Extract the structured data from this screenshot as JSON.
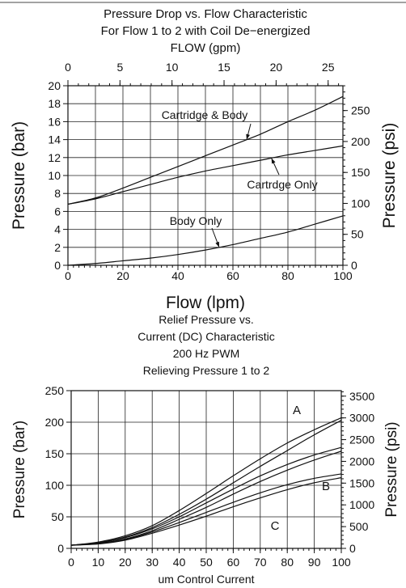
{
  "chart_data": [
    {
      "type": "line",
      "title": [
        "Pressure Drop vs. Flow Characteristic",
        "For Flow 1 to 2 with Coil De−energized",
        "FLOW (gpm)"
      ],
      "xlabel": "Flow (lpm)",
      "ylabel": "Pressure (bar)",
      "y2label": "Pressure (psi)",
      "xlim": [
        0,
        100
      ],
      "ylim": [
        0,
        20
      ],
      "x_ticks": [
        "0",
        "20",
        "40",
        "60",
        "80",
        "100"
      ],
      "y_ticks": [
        "0",
        "2",
        "4",
        "6",
        "8",
        "10",
        "12",
        "14",
        "16",
        "18",
        "20"
      ],
      "x2_ticks": [
        {
          "v": 0,
          "label": "0"
        },
        {
          "v": 5,
          "label": "5"
        },
        {
          "v": 10,
          "label": "10"
        },
        {
          "v": 15,
          "label": "15"
        },
        {
          "v": 20,
          "label": "20"
        },
        {
          "v": 25,
          "label": "25"
        }
      ],
      "y2_ticks": [
        {
          "v": 0,
          "label": "0"
        },
        {
          "v": 50,
          "label": "50"
        },
        {
          "v": 100,
          "label": "100"
        },
        {
          "v": 150,
          "label": "150"
        },
        {
          "v": 200,
          "label": "200"
        },
        {
          "v": 250,
          "label": "250"
        }
      ],
      "grid": true,
      "series": [
        {
          "name": "Cartridge & Body",
          "x": [
            0,
            10,
            20,
            30,
            40,
            50,
            60,
            70,
            80,
            90,
            100
          ],
          "y": [
            6.8,
            7.5,
            8.6,
            9.8,
            11.0,
            12.2,
            13.4,
            14.6,
            16.0,
            17.3,
            18.8
          ]
        },
        {
          "name": "Cartrdge Only",
          "x": [
            0,
            10,
            20,
            30,
            40,
            50,
            60,
            70,
            80,
            90,
            100
          ],
          "y": [
            6.8,
            7.4,
            8.2,
            9.0,
            9.8,
            10.5,
            11.1,
            11.7,
            12.3,
            12.8,
            13.3
          ]
        },
        {
          "name": "Body Only",
          "x": [
            0,
            10,
            20,
            30,
            40,
            50,
            60,
            70,
            80,
            90,
            100
          ],
          "y": [
            0,
            0.2,
            0.5,
            0.8,
            1.2,
            1.7,
            2.3,
            3.0,
            3.7,
            4.6,
            5.5
          ]
        }
      ],
      "annotations": [
        {
          "text": "Cartridge & Body",
          "series": 0,
          "at": 65
        },
        {
          "text": "Cartrdge Only",
          "series": 1,
          "at": 74
        },
        {
          "text": "Body Only",
          "series": 2,
          "at": 55
        }
      ]
    },
    {
      "type": "line",
      "title": [
        "Relief Pressure vs.",
        "Current (DC) Characteristic",
        "200 Hz PWM",
        "Relieving Pressure 1 to 2"
      ],
      "xlabel": "um Control Current",
      "ylabel": "Pressure (bar)",
      "y2label": "Pressure (psi)",
      "xlim": [
        0,
        100
      ],
      "ylim": [
        0,
        250
      ],
      "x_ticks": [
        "0",
        "10",
        "20",
        "30",
        "40",
        "50",
        "60",
        "70",
        "80",
        "90",
        "100"
      ],
      "y_ticks": [
        "0",
        "50",
        "100",
        "150",
        "200",
        "250"
      ],
      "y2_ticks": [
        {
          "v": 0,
          "label": "0"
        },
        {
          "v": 500,
          "label": "500"
        },
        {
          "v": 1000,
          "label": "1000"
        },
        {
          "v": 1500,
          "label": "1500"
        },
        {
          "v": 2000,
          "label": "2000"
        },
        {
          "v": 2500,
          "label": "2500"
        },
        {
          "v": 3000,
          "label": "3000"
        },
        {
          "v": 3500,
          "label": "3500"
        }
      ],
      "grid": true,
      "series": [
        {
          "name": "A",
          "x": [
            0,
            10,
            20,
            30,
            40,
            50,
            60,
            70,
            80,
            90,
            100
          ],
          "y": [
            5,
            10,
            20,
            36,
            60,
            87,
            115,
            142,
            167,
            188,
            207
          ]
        },
        {
          "name": "A",
          "x": [
            0,
            10,
            20,
            30,
            40,
            50,
            60,
            70,
            80,
            90,
            100
          ],
          "y": [
            5,
            9,
            18,
            33,
            54,
            78,
            104,
            130,
            155,
            180,
            203
          ]
        },
        {
          "name": "B",
          "x": [
            0,
            10,
            20,
            30,
            40,
            50,
            60,
            70,
            80,
            90,
            100
          ],
          "y": [
            5,
            9,
            17,
            31,
            50,
            72,
            94,
            115,
            133,
            148,
            160
          ]
        },
        {
          "name": "B",
          "x": [
            0,
            10,
            20,
            30,
            40,
            50,
            60,
            70,
            80,
            90,
            100
          ],
          "y": [
            5,
            8,
            15,
            28,
            46,
            65,
            86,
            106,
            124,
            140,
            154
          ]
        },
        {
          "name": "C",
          "x": [
            0,
            10,
            20,
            30,
            40,
            50,
            60,
            70,
            80,
            90,
            100
          ],
          "y": [
            5,
            8,
            14,
            26,
            41,
            57,
            73,
            88,
            101,
            111,
            118
          ]
        },
        {
          "name": "C",
          "x": [
            0,
            10,
            20,
            30,
            40,
            50,
            60,
            70,
            80,
            90,
            100
          ],
          "y": [
            5,
            7,
            13,
            24,
            37,
            51,
            66,
            80,
            93,
            104,
            112
          ]
        }
      ],
      "labels": [
        "A",
        "B",
        "C"
      ]
    }
  ]
}
